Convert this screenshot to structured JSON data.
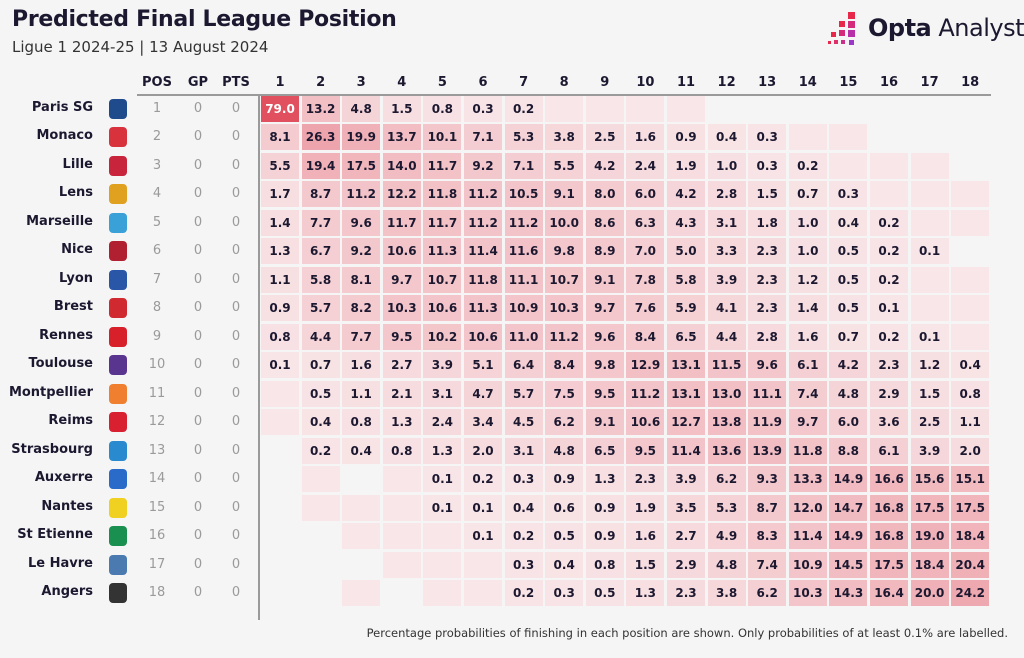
{
  "header": {
    "title": "Predicted Final League Position",
    "subtitle": "Ligue 1 2024-25 | 13 August 2024",
    "brand_bold": "Opta",
    "brand_light": " Analyst"
  },
  "footer": {
    "note": "Percentage probabilities of finishing in each position are shown. Only probabilities of at least 0.1% are labelled."
  },
  "colors": {
    "background": "#f5f5f5",
    "low": "#f8e6e8",
    "high": "#e0505f",
    "text": "#1c1830"
  },
  "chart_data": {
    "type": "heatmap",
    "title": "Predicted Final League Position",
    "stat_columns": [
      "POS",
      "GP",
      "PTS"
    ],
    "position_columns": [
      "1",
      "2",
      "3",
      "4",
      "5",
      "6",
      "7",
      "8",
      "9",
      "10",
      "11",
      "12",
      "13",
      "14",
      "15",
      "16",
      "17",
      "18"
    ],
    "legend_note": "empty string = shaded cell below 0.1% (unlabelled); null = no cell",
    "rows": [
      {
        "team": "Paris SG",
        "crest": "psg-crest-icon",
        "crest_color": "#1f4a8c",
        "pos": "1",
        "gp": "0",
        "pts": "0",
        "values": [
          79.0,
          13.2,
          4.8,
          1.5,
          0.8,
          0.3,
          0.2,
          "",
          "",
          "",
          "",
          null,
          null,
          null,
          null,
          null,
          null,
          null
        ]
      },
      {
        "team": "Monaco",
        "crest": "monaco-crest-icon",
        "crest_color": "#d8323c",
        "pos": "2",
        "gp": "0",
        "pts": "0",
        "values": [
          8.1,
          26.3,
          19.9,
          13.7,
          10.1,
          7.1,
          5.3,
          3.8,
          2.5,
          1.6,
          0.9,
          0.4,
          0.3,
          "",
          "",
          null,
          null,
          null
        ]
      },
      {
        "team": "Lille",
        "crest": "lille-crest-icon",
        "crest_color": "#c8243c",
        "pos": "3",
        "gp": "0",
        "pts": "0",
        "values": [
          5.5,
          19.4,
          17.5,
          14.0,
          11.7,
          9.2,
          7.1,
          5.5,
          4.2,
          2.4,
          1.9,
          1.0,
          0.3,
          0.2,
          "",
          "",
          "",
          null
        ]
      },
      {
        "team": "Lens",
        "crest": "lens-crest-icon",
        "crest_color": "#e0a020",
        "pos": "4",
        "gp": "0",
        "pts": "0",
        "values": [
          1.7,
          8.7,
          11.2,
          12.2,
          11.8,
          11.2,
          10.5,
          9.1,
          8.0,
          6.0,
          4.2,
          2.8,
          1.5,
          0.7,
          0.3,
          "",
          "",
          ""
        ]
      },
      {
        "team": "Marseille",
        "crest": "marseille-crest-icon",
        "crest_color": "#3aa0d8",
        "pos": "5",
        "gp": "0",
        "pts": "0",
        "values": [
          1.4,
          7.7,
          9.6,
          11.7,
          11.7,
          11.2,
          11.2,
          10.0,
          8.6,
          6.3,
          4.3,
          3.1,
          1.8,
          1.0,
          0.4,
          0.2,
          "",
          ""
        ]
      },
      {
        "team": "Nice",
        "crest": "nice-crest-icon",
        "crest_color": "#b02030",
        "pos": "6",
        "gp": "0",
        "pts": "0",
        "values": [
          1.3,
          6.7,
          9.2,
          10.6,
          11.3,
          11.4,
          11.6,
          9.8,
          8.9,
          7.0,
          5.0,
          3.3,
          2.3,
          1.0,
          0.5,
          0.2,
          0.1,
          null
        ]
      },
      {
        "team": "Lyon",
        "crest": "lyon-crest-icon",
        "crest_color": "#2a56a8",
        "pos": "7",
        "gp": "0",
        "pts": "0",
        "values": [
          1.1,
          5.8,
          8.1,
          9.7,
          10.7,
          11.8,
          11.1,
          10.7,
          9.1,
          7.8,
          5.8,
          3.9,
          2.3,
          1.2,
          0.5,
          0.2,
          "",
          ""
        ]
      },
      {
        "team": "Brest",
        "crest": "brest-crest-icon",
        "crest_color": "#d02a30",
        "pos": "8",
        "gp": "0",
        "pts": "0",
        "values": [
          0.9,
          5.7,
          8.2,
          10.3,
          10.6,
          11.3,
          10.9,
          10.3,
          9.7,
          7.6,
          5.9,
          4.1,
          2.3,
          1.4,
          0.5,
          0.1,
          "",
          ""
        ]
      },
      {
        "team": "Rennes",
        "crest": "rennes-crest-icon",
        "crest_color": "#d8202a",
        "pos": "9",
        "gp": "0",
        "pts": "0",
        "values": [
          0.8,
          4.4,
          7.7,
          9.5,
          10.2,
          10.6,
          11.0,
          11.2,
          9.6,
          8.4,
          6.5,
          4.4,
          2.8,
          1.6,
          0.7,
          0.2,
          0.1,
          ""
        ]
      },
      {
        "team": "Toulouse",
        "crest": "toulouse-crest-icon",
        "crest_color": "#5a3590",
        "pos": "10",
        "gp": "0",
        "pts": "0",
        "values": [
          0.1,
          0.7,
          1.6,
          2.7,
          3.9,
          5.1,
          6.4,
          8.4,
          9.8,
          12.9,
          13.1,
          11.5,
          9.6,
          6.1,
          4.2,
          2.3,
          1.2,
          0.4
        ]
      },
      {
        "team": "Montpellier",
        "crest": "montpellier-crest-icon",
        "crest_color": "#f08030",
        "pos": "11",
        "gp": "0",
        "pts": "0",
        "values": [
          "",
          0.5,
          1.1,
          2.1,
          3.1,
          4.7,
          5.7,
          7.5,
          9.5,
          11.2,
          13.1,
          13.0,
          11.1,
          7.4,
          4.8,
          2.9,
          1.5,
          0.8
        ]
      },
      {
        "team": "Reims",
        "crest": "reims-crest-icon",
        "crest_color": "#d82030",
        "pos": "12",
        "gp": "0",
        "pts": "0",
        "values": [
          "",
          0.4,
          0.8,
          1.3,
          2.4,
          3.4,
          4.5,
          6.2,
          9.1,
          10.6,
          12.7,
          13.8,
          11.9,
          9.7,
          6.0,
          3.6,
          2.5,
          1.1
        ]
      },
      {
        "team": "Strasbourg",
        "crest": "strasbourg-crest-icon",
        "crest_color": "#2a8ad0",
        "pos": "13",
        "gp": "0",
        "pts": "0",
        "values": [
          null,
          0.2,
          0.4,
          0.8,
          1.3,
          2.0,
          3.1,
          4.8,
          6.5,
          9.5,
          11.4,
          13.6,
          13.9,
          11.8,
          8.8,
          6.1,
          3.9,
          2.0
        ]
      },
      {
        "team": "Auxerre",
        "crest": "auxerre-crest-icon",
        "crest_color": "#2a6ac8",
        "pos": "14",
        "gp": "0",
        "pts": "0",
        "values": [
          null,
          "",
          null,
          "",
          0.1,
          0.2,
          0.3,
          0.9,
          1.3,
          2.3,
          3.9,
          6.2,
          9.3,
          13.3,
          14.9,
          16.6,
          15.6,
          15.1
        ]
      },
      {
        "team": "Nantes",
        "crest": "nantes-crest-icon",
        "crest_color": "#f0d020",
        "pos": "15",
        "gp": "0",
        "pts": "0",
        "values": [
          null,
          "",
          "",
          "",
          0.1,
          0.1,
          0.4,
          0.6,
          0.9,
          1.9,
          3.5,
          5.3,
          8.7,
          12.0,
          14.7,
          16.8,
          17.5,
          17.5
        ]
      },
      {
        "team": "St Etienne",
        "crest": "st-etienne-crest-icon",
        "crest_color": "#1a9050",
        "pos": "16",
        "gp": "0",
        "pts": "0",
        "values": [
          null,
          null,
          "",
          "",
          "",
          0.1,
          0.2,
          0.5,
          0.9,
          1.6,
          2.7,
          4.9,
          8.3,
          11.4,
          14.9,
          16.8,
          19.0,
          18.4
        ]
      },
      {
        "team": "Le Havre",
        "crest": "le-havre-crest-icon",
        "crest_color": "#4a7ab0",
        "pos": "17",
        "gp": "0",
        "pts": "0",
        "values": [
          null,
          null,
          null,
          "",
          "",
          "",
          0.3,
          0.4,
          0.8,
          1.5,
          2.9,
          4.8,
          7.4,
          10.9,
          14.5,
          17.5,
          18.4,
          20.4
        ]
      },
      {
        "team": "Angers",
        "crest": "angers-crest-icon",
        "crest_color": "#333333",
        "pos": "18",
        "gp": "0",
        "pts": "0",
        "values": [
          null,
          null,
          "",
          null,
          "",
          "",
          0.2,
          0.3,
          0.5,
          1.3,
          2.3,
          3.8,
          6.2,
          10.3,
          14.3,
          16.4,
          20.0,
          24.2
        ]
      }
    ]
  }
}
